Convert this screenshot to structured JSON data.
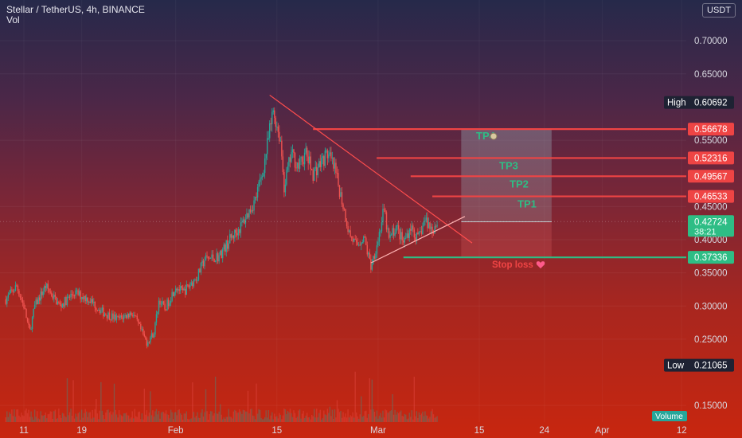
{
  "header": {
    "symbol_line": "Stellar / TetherUS, 4h, BINANCE",
    "volume_label": "Vol",
    "currency_button": "USDT"
  },
  "colors": {
    "up": "#26a69a",
    "down": "#ef5350",
    "target_line": "#ef4444",
    "stop_line": "#2ebd85",
    "tp_text": "#2ebd85",
    "stop_text": "#ef4444",
    "trendline": "#ff4d4d",
    "axis_text": "#d8d8e0",
    "high_low_label_bg": "#1e2233"
  },
  "chart_data": {
    "type": "candlestick",
    "symbol": "Stellar / TetherUS",
    "timeframe": "4h",
    "exchange": "BINANCE",
    "y_axis": {
      "ylim": [
        0.125,
        0.735
      ],
      "ticks": [
        {
          "value": 0.15,
          "label": "0.15000"
        },
        {
          "value": 0.25,
          "label": "0.25000"
        },
        {
          "value": 0.3,
          "label": "0.30000"
        },
        {
          "value": 0.35,
          "label": "0.35000"
        },
        {
          "value": 0.4,
          "label": "0.40000"
        },
        {
          "value": 0.45,
          "label": "0.45000"
        },
        {
          "value": 0.55,
          "label": "0.55000"
        },
        {
          "value": 0.65,
          "label": "0.65000"
        },
        {
          "value": 0.7,
          "label": "0.70000"
        }
      ]
    },
    "x_axis": {
      "ticks": [
        {
          "label": "11",
          "day": 0
        },
        {
          "label": "19",
          "day": 8
        },
        {
          "label": "Feb",
          "day": 21
        },
        {
          "label": "15",
          "day": 35
        },
        {
          "label": "Mar",
          "day": 49
        },
        {
          "label": "15",
          "day": 63
        },
        {
          "label": "24",
          "day": 72
        },
        {
          "label": "Apr",
          "day": 80
        },
        {
          "label": "12",
          "day": 91
        }
      ]
    },
    "price_path": [
      [
        -2.5,
        0.31
      ],
      [
        -1.0,
        0.33
      ],
      [
        0,
        0.3
      ],
      [
        0.8,
        0.26
      ],
      [
        1.5,
        0.3
      ],
      [
        3,
        0.33
      ],
      [
        5,
        0.3
      ],
      [
        7,
        0.32
      ],
      [
        9,
        0.31
      ],
      [
        11,
        0.29
      ],
      [
        13,
        0.28
      ],
      [
        15,
        0.29
      ],
      [
        17,
        0.245
      ],
      [
        18,
        0.26
      ],
      [
        18.7,
        0.31
      ],
      [
        19.5,
        0.295
      ],
      [
        21,
        0.33
      ],
      [
        22,
        0.32
      ],
      [
        24,
        0.345
      ],
      [
        25,
        0.37
      ],
      [
        27,
        0.375
      ],
      [
        28.5,
        0.4
      ],
      [
        30,
        0.42
      ],
      [
        32,
        0.46
      ],
      [
        33,
        0.5
      ],
      [
        34.5,
        0.595
      ],
      [
        35.5,
        0.55
      ],
      [
        36,
        0.48
      ],
      [
        37,
        0.53
      ],
      [
        38,
        0.51
      ],
      [
        39,
        0.53
      ],
      [
        40,
        0.5
      ],
      [
        41,
        0.515
      ],
      [
        42,
        0.53
      ],
      [
        43,
        0.505
      ],
      [
        44,
        0.46
      ],
      [
        45,
        0.41
      ],
      [
        46,
        0.39
      ],
      [
        47,
        0.405
      ],
      [
        48,
        0.36
      ],
      [
        49,
        0.4
      ],
      [
        49.8,
        0.445
      ],
      [
        50.5,
        0.4
      ],
      [
        51.5,
        0.42
      ],
      [
        52.5,
        0.395
      ],
      [
        53.5,
        0.42
      ],
      [
        54.5,
        0.4
      ],
      [
        55.5,
        0.43
      ],
      [
        56.5,
        0.415
      ],
      [
        57.2,
        0.427
      ]
    ],
    "high": {
      "label": "High",
      "value": 0.60692,
      "text": "0.60692"
    },
    "low": {
      "label": "Low",
      "value": 0.21065,
      "text": "0.21065"
    },
    "current_price": {
      "value": 0.42724,
      "text": "0.42724",
      "countdown": "38:21"
    },
    "target_levels": [
      {
        "name": "TP1",
        "value": 0.46533,
        "text": "0.46533",
        "from_day": 56.5
      },
      {
        "name": "TP2",
        "value": 0.49567,
        "text": "0.49567",
        "from_day": 53.5
      },
      {
        "name": "TP3",
        "value": 0.52316,
        "text": "0.52316",
        "from_day": 48.8
      },
      {
        "name": "TP4",
        "value": 0.56678,
        "text": "0.56678",
        "from_day": 40.0
      }
    ],
    "stop_loss": {
      "label": "Stop loss",
      "value": 0.37336,
      "text": "0.37336",
      "from_day": 52.5
    },
    "position_box": {
      "from_day": 60.5,
      "to_day": 73.0,
      "entry": 0.427,
      "target": 0.56678,
      "stop": 0.37336
    },
    "trendlines": [
      {
        "from": [
          34.0,
          0.618
        ],
        "to": [
          62.0,
          0.395
        ]
      },
      {
        "from": [
          48.0,
          0.365
        ],
        "to": [
          61.0,
          0.435
        ]
      }
    ],
    "volume_label": "Volume"
  }
}
